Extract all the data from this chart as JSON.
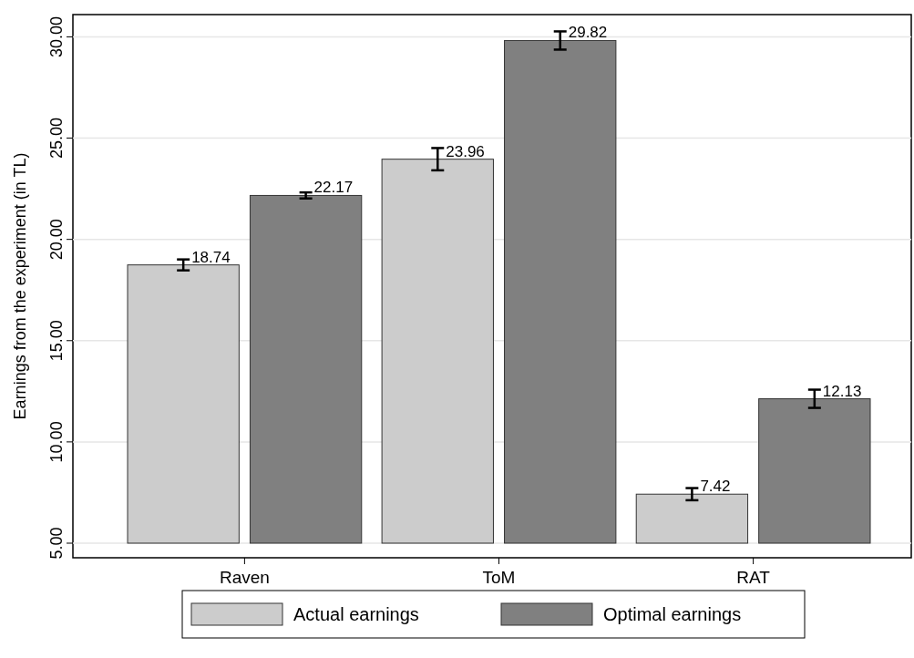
{
  "chart_data": {
    "type": "bar",
    "ylabel": "Earnings from the experiment (in TL)",
    "categories": [
      "Raven",
      "ToM",
      "RAT"
    ],
    "series": [
      {
        "name": "Actual earnings",
        "color": "#cccccc",
        "values": [
          18.74,
          23.96,
          7.42
        ],
        "errors": [
          0.27,
          0.55,
          0.3
        ]
      },
      {
        "name": "Optimal earnings",
        "color": "#808080",
        "values": [
          22.17,
          29.82,
          12.13
        ],
        "errors": [
          0.15,
          0.45,
          0.45
        ]
      }
    ],
    "ylim": [
      5,
      31.1
    ],
    "yticks": [
      {
        "value": 5,
        "label": "5.00"
      },
      {
        "value": 10,
        "label": "10.00"
      },
      {
        "value": 15,
        "label": "15.00"
      },
      {
        "value": 20,
        "label": "20.00"
      },
      {
        "value": 25,
        "label": "25.00"
      },
      {
        "value": 30,
        "label": "30.00"
      }
    ],
    "grid": "y",
    "data_labels": true,
    "legend": "bottom"
  }
}
